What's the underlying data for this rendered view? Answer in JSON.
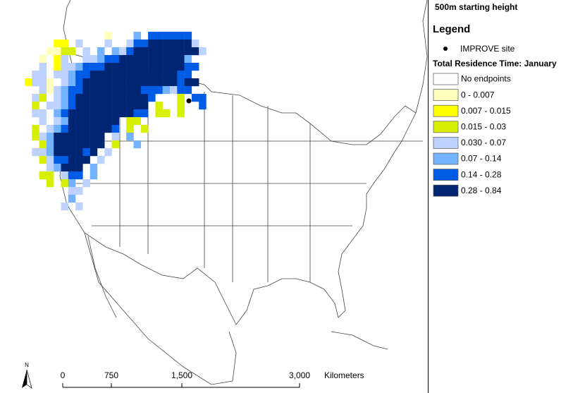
{
  "title": "500m starting height",
  "legend": {
    "title": "Legend",
    "site": "IMPROVE site",
    "subtitle": "Total Residence Time: January",
    "items": [
      {
        "label": "No endpoints",
        "color": "#ffffff"
      },
      {
        "label": "0 - 0.007",
        "color": "#ffffbe"
      },
      {
        "label": "0.007 - 0.015",
        "color": "#ffff00"
      },
      {
        "label": "0.015 - 0.03",
        "color": "#d7ef00"
      },
      {
        "label": "0.030 - 0.07",
        "color": "#bed2ff"
      },
      {
        "label": "0.07 - 0.14",
        "color": "#73b2ff"
      },
      {
        "label": "0.14 - 0.28",
        "color": "#005ce6"
      },
      {
        "label": "0.28 - 0.84",
        "color": "#002673"
      }
    ]
  },
  "scale": {
    "labels": [
      "0",
      "750",
      "1,500",
      "3,000"
    ],
    "unit": "Kilometers"
  },
  "north": "N"
}
